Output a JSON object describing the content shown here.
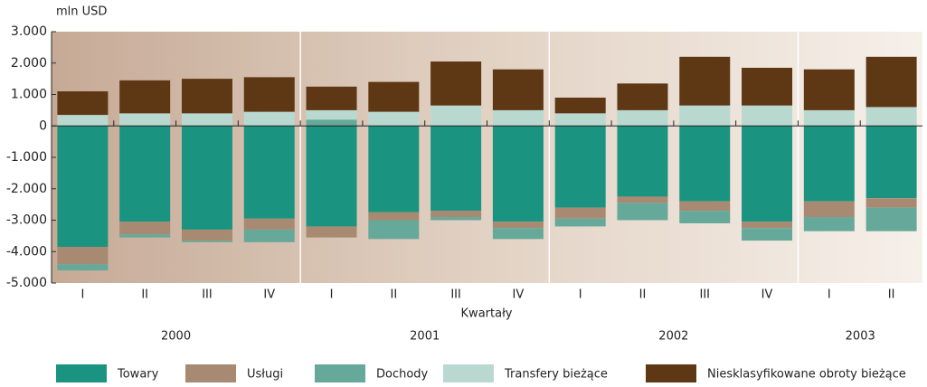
{
  "chart_data": {
    "type": "stacked_bar",
    "y_axis_label": "mln USD",
    "x_axis_label": "Kwartały",
    "categories": [
      "I",
      "II",
      "III",
      "IV",
      "I",
      "II",
      "III",
      "IV",
      "I",
      "II",
      "III",
      "IV",
      "I",
      "II"
    ],
    "years": [
      "2000",
      "2001",
      "2002",
      "2003"
    ],
    "series": [
      {
        "name": "Towary",
        "color": "#1a9480",
        "values": [
          -3850,
          -3050,
          -3300,
          -2950,
          -3200,
          -2750,
          -2700,
          -3050,
          -2600,
          -2250,
          -2400,
          -3050,
          -2400,
          -2300
        ]
      },
      {
        "name": "Usługi",
        "color": "#a88a72",
        "values": [
          -550,
          -400,
          -350,
          -350,
          -350,
          -250,
          -200,
          -200,
          -350,
          -200,
          -300,
          -200,
          -500,
          -300
        ]
      },
      {
        "name": "Dochody",
        "color": "#66a99a",
        "values": [
          -200,
          -100,
          -50,
          -400,
          200,
          -600,
          -100,
          -350,
          -250,
          -550,
          -400,
          -400,
          -450,
          -750
        ]
      },
      {
        "name": "Transfery bieżące",
        "color": "#b9d9d0",
        "values": [
          350,
          400,
          400,
          450,
          300,
          450,
          650,
          500,
          400,
          500,
          650,
          650,
          500,
          600
        ]
      },
      {
        "name": "Niesklasyfikowane obroty bieżące",
        "color": "#5e3714",
        "values": [
          750,
          1050,
          1100,
          1100,
          750,
          950,
          1400,
          1300,
          500,
          850,
          1550,
          1200,
          1300,
          1600
        ]
      }
    ],
    "ylim": [
      -5000,
      3000
    ],
    "yticks": [
      {
        "value": -5000,
        "label": "-5.000"
      },
      {
        "value": -4000,
        "label": "-4.000"
      },
      {
        "value": -3000,
        "label": "-3.000"
      },
      {
        "value": -2000,
        "label": "-2.000"
      },
      {
        "value": -1000,
        "label": "-1.000"
      },
      0,
      {
        "value": 1000,
        "label": "1.000"
      },
      {
        "value": 2000,
        "label": "2.000"
      },
      {
        "value": 3000,
        "label": "3.000"
      }
    ],
    "legend_position": "bottom"
  }
}
